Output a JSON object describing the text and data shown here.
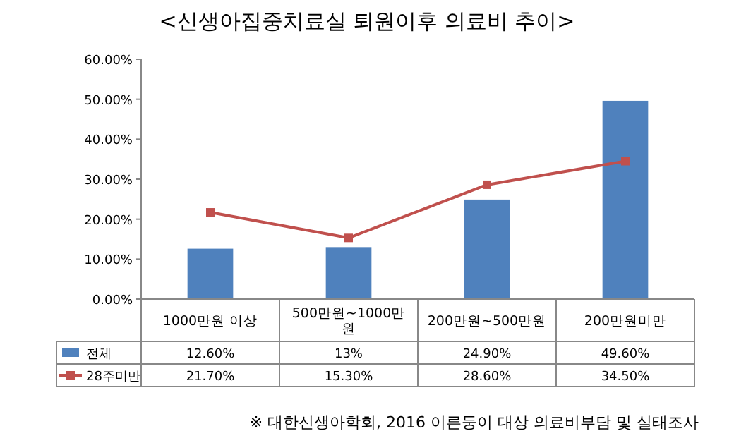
{
  "chart_data": {
    "type": "bar",
    "title": "<신생아집중치료실 퇴원이후 의료비 추이>",
    "categories": [
      "1000만원 이상",
      "500만원~1000만원",
      "200만원~500만원",
      "200만원미만"
    ],
    "series": [
      {
        "name": "전체",
        "color": "#4f81bd",
        "values": [
          12.6,
          13,
          24.9,
          49.6
        ],
        "value_labels": [
          "12.60%",
          "13%",
          "24.90%",
          "49.60%"
        ]
      },
      {
        "name": "28주미만",
        "type": "line",
        "color": "#c0504d",
        "marker": "square",
        "values": [
          21.7,
          15.3,
          28.6,
          34.5
        ],
        "value_labels": [
          "21.70%",
          "15.30%",
          "28.60%",
          "34.50%"
        ]
      }
    ],
    "legend": "bottom left",
    "ylim": [
      0,
      60
    ],
    "yticks": [
      {
        "value": 0,
        "label": "0.00%"
      },
      {
        "value": 10,
        "label": "10.00%"
      },
      {
        "value": 20,
        "label": "20.00%"
      },
      {
        "value": 30,
        "label": "30.00%"
      },
      {
        "value": 40,
        "label": "40.00%"
      },
      {
        "value": 50,
        "label": "50.00%"
      },
      {
        "value": 60,
        "label": "60.00%"
      }
    ],
    "annotations": [
      "※ 대한신생아학회, 2016 이른둥이 대상 의료비부담 및 실태조사"
    ]
  }
}
